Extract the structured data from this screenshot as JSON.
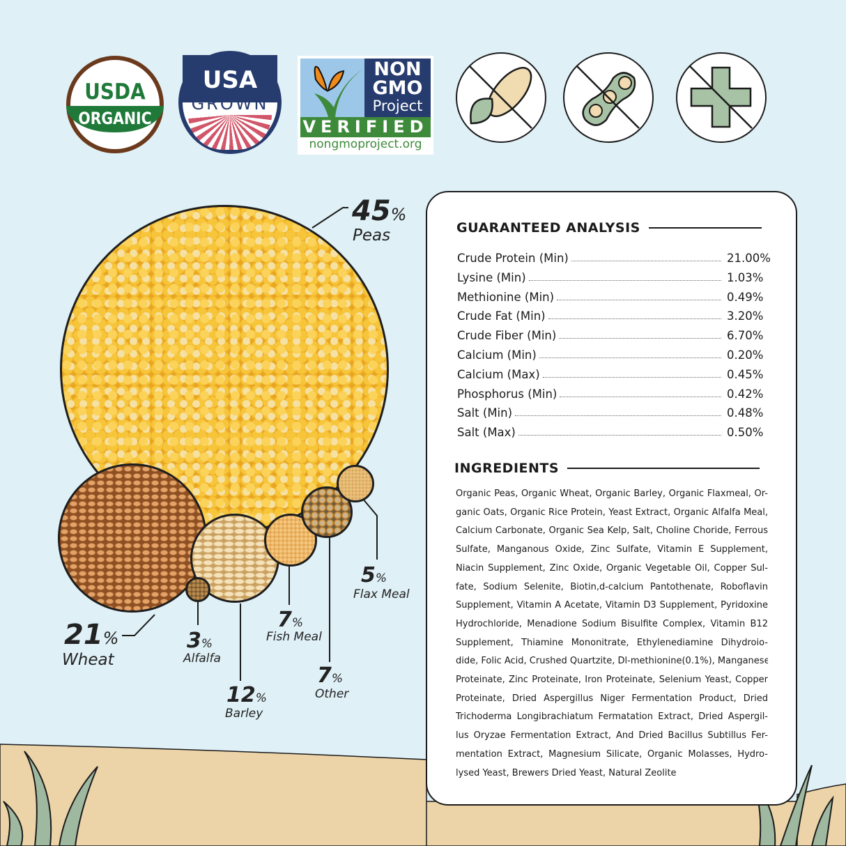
{
  "badges": {
    "usda": {
      "line1": "USDA",
      "line2": "ORGANIC"
    },
    "usa_grown": {
      "line1": "USA",
      "line2": "GROWN"
    },
    "non_gmo": {
      "line1": "NON",
      "line2": "GMO",
      "line3": "Project",
      "verified": "VERIFIED",
      "url": "nongmoproject.org"
    },
    "icons": [
      "no-corn-icon",
      "no-soy-icon",
      "no-medication-icon"
    ]
  },
  "composition": [
    {
      "percent": "45",
      "sym": "%",
      "name": "Peas"
    },
    {
      "percent": "21",
      "sym": "%",
      "name": "Wheat"
    },
    {
      "percent": "3",
      "sym": "%",
      "name": "Alfalfa"
    },
    {
      "percent": "12",
      "sym": "%",
      "name": "Barley"
    },
    {
      "percent": "7",
      "sym": "%",
      "name": "Fish Meal"
    },
    {
      "percent": "7",
      "sym": "%",
      "name": "Other"
    },
    {
      "percent": "5",
      "sym": "%",
      "name": "Flax Meal"
    }
  ],
  "analysis": {
    "title": "GUARANTEED ANALYSIS",
    "rows": [
      {
        "label": "Crude Protein (Min)",
        "value": "21.00%"
      },
      {
        "label": "Lysine (Min)",
        "value": "1.03%"
      },
      {
        "label": "Methionine (Min)",
        "value": "0.49%"
      },
      {
        "label": "Crude Fat (Min)",
        "value": "3.20%"
      },
      {
        "label": "Crude Fiber (Min)",
        "value": "6.70%"
      },
      {
        "label": "Calcium (Min)",
        "value": "0.20%"
      },
      {
        "label": "Calcium (Max)",
        "value": "0.45%"
      },
      {
        "label": "Phosphorus (Min)",
        "value": "0.42%"
      },
      {
        "label": "Salt (Min)",
        "value": "0.48%"
      },
      {
        "label": "Salt (Max)",
        "value": "0.50%"
      }
    ]
  },
  "ingredients": {
    "title": "INGREDIENTS",
    "lines": [
      "Organic Peas, Organic Wheat, Organic Barley, Organic Flaxmeal, Or-",
      "ganic Oats, Organic Rice Protein, Yeast Extract,  Organic Alfalfa Meal,",
      "Calcium Carbonate, Organic Sea Kelp, Salt, Choline Choride, Ferrous",
      "Sulfate, Manganous Oxide, Zinc Sulfate, Vitamin E Supplement,",
      "Niacin Supplement, Zinc Oxide, Organic Vegetable Oil, Copper Sul-",
      "fate, Sodium Selenite, Biotin,d-calcium Pantothenate, Roboflavin",
      "Supplement, Vitamin A Acetate, Vitamin D3 Supplement, Pyridoxine",
      "Hydrochloride, Menadione Sodium Bisulfite Complex, Vitamin B12",
      "Supplement, Thiamine Mononitrate, Ethylenediamine Dihydroio-",
      "dide, Folic Acid, Crushed Quartzite, Dl-methionine(0.1%), Manganese",
      "Proteinate, Zinc Proteinate, Iron Proteinate, Selenium Yeast, Copper",
      "Proteinate, Dried Aspergillus Niger Fermentation Product, Dried",
      "Trichoderma Longibrachiatum Fermatation Extract, Dried Aspergil-",
      "lus Oryzae Fermentation Extract, And Dried Bacillus Subtillus Fer-",
      "mentation Extract, Magnesium Silicate, Organic Molasses, Hydro-",
      "lysed Yeast, Brewers Dried Yeast, Natural Zeolite"
    ]
  },
  "colors": {
    "sky": "#dff0f6",
    "sand": "#ecd3a8",
    "grass": "#9fb8a0",
    "usda_green": "#1f7a3a",
    "usda_brown": "#6b3a1d",
    "usa_navy": "#263b6e",
    "usa_red": "#d2566a"
  }
}
